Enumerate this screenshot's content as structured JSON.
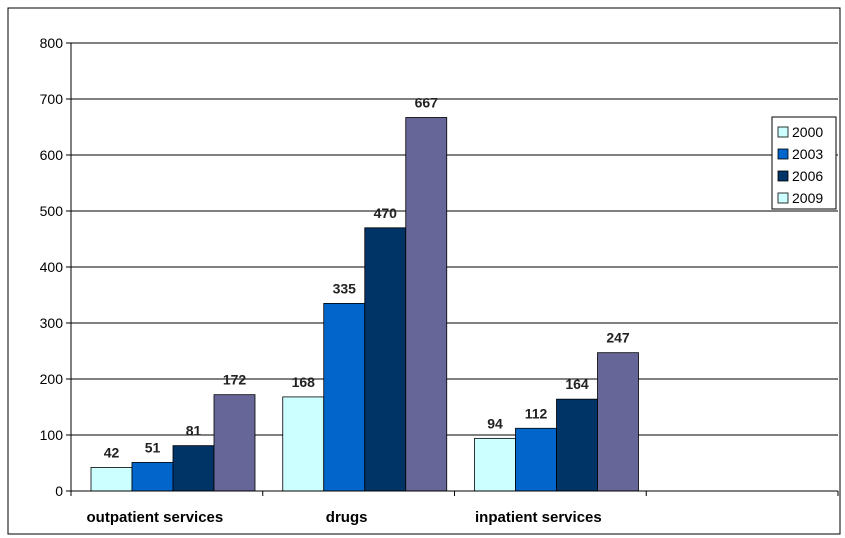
{
  "chart_data": {
    "type": "bar",
    "categories": [
      "outpatient services",
      "drugs",
      "inpatient services",
      ""
    ],
    "series": [
      {
        "name": "2000",
        "values": [
          42,
          168,
          94,
          null
        ],
        "color": "#ccffff"
      },
      {
        "name": "2003",
        "values": [
          51,
          335,
          112,
          null
        ],
        "color": "#0066cc"
      },
      {
        "name": "2006",
        "values": [
          81,
          470,
          164,
          null
        ],
        "color": "#003366"
      },
      {
        "name": "2009",
        "values": [
          172,
          667,
          247,
          null
        ],
        "color": "#666699"
      }
    ],
    "legend_swatch_colors": [
      "#ccffff",
      "#0066cc",
      "#003366",
      "#ccffff"
    ],
    "ylim": [
      0,
      800
    ],
    "yticks": [
      "0",
      "100",
      "200",
      "300",
      "400",
      "500",
      "600",
      "700",
      "800"
    ],
    "title": "",
    "xlabel": "",
    "ylabel": "",
    "grid": true,
    "legend_position": "right"
  }
}
